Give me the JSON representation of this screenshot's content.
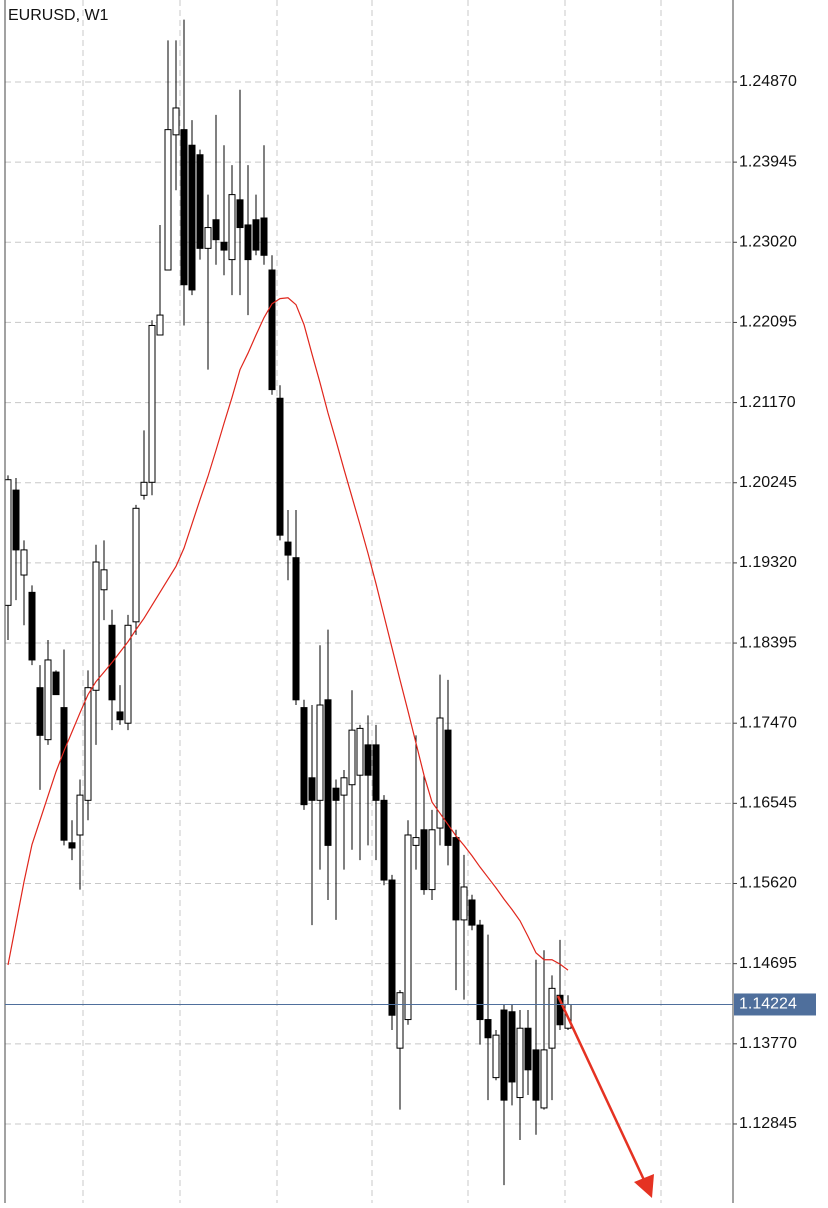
{
  "chart_data": {
    "type": "candlestick",
    "title": "EURUSD, W1",
    "ylim": [
      1.11933,
      1.25816
    ],
    "yticks": [
      {
        "value": 1.2487,
        "label": "1.24870"
      },
      {
        "value": 1.23945,
        "label": "1.23945"
      },
      {
        "value": 1.2302,
        "label": "1.23020"
      },
      {
        "value": 1.22095,
        "label": "1.22095"
      },
      {
        "value": 1.2117,
        "label": "1.21170"
      },
      {
        "value": 1.20245,
        "label": "1.20245"
      },
      {
        "value": 1.1932,
        "label": "1.19320"
      },
      {
        "value": 1.18395,
        "label": "1.18395"
      },
      {
        "value": 1.1747,
        "label": "1.17470"
      },
      {
        "value": 1.16545,
        "label": "1.16545"
      },
      {
        "value": 1.1562,
        "label": "1.15620"
      },
      {
        "value": 1.14695,
        "label": "1.14695"
      },
      {
        "value": 1.1377,
        "label": "1.13770"
      },
      {
        "value": 1.12845,
        "label": "1.12845"
      }
    ],
    "grid": true,
    "up_color": "#ffffff",
    "down_color": "#000000",
    "open": [
      1.1883,
      1.2016,
      1.1918,
      1.1898,
      1.1788,
      1.1728,
      1.1806,
      1.1765,
      1.1609,
      1.1618,
      1.1658,
      1.1785,
      1.1901,
      1.186,
      1.176,
      1.1747,
      1.1864,
      1.201,
      1.2025,
      1.2195,
      1.227,
      1.2426,
      1.2432,
      1.2414,
      1.2403,
      1.2295,
      1.2328,
      1.2302,
      1.2282,
      1.2351,
      1.2322,
      1.2328,
      1.233,
      1.227,
      1.2122,
      1.1956,
      1.1938,
      1.1765,
      1.1684,
      1.1658,
      1.1774,
      1.1672,
      1.1664,
      1.1676,
      1.1687,
      1.1722,
      1.1722,
      1.1658,
      1.1566,
      1.1372,
      1.1405,
      1.1606,
      1.1624,
      1.1555,
      1.1626,
      1.1739,
      1.1615,
      1.152,
      1.1543,
      1.1514,
      1.1405,
      1.1338,
      1.1416,
      1.1414,
      1.1315,
      1.1395,
      1.137,
      1.1303,
      1.1372,
      1.1433,
      1.1395
    ],
    "high": [
      1.2033,
      1.203,
      1.1958,
      1.1906,
      1.1814,
      1.1843,
      1.1808,
      1.1832,
      1.1635,
      1.1682,
      1.1808,
      1.1953,
      1.1958,
      1.1878,
      1.1791,
      1.1872,
      1.1999,
      1.2085,
      1.2212,
      1.2322,
      1.2535,
      1.2535,
      1.2559,
      1.2443,
      1.2409,
      1.2357,
      1.2449,
      1.2414,
      1.2391,
      1.2478,
      1.2391,
      1.2357,
      1.2414,
      1.2287,
      1.2137,
      1.1993,
      1.1993,
      1.1774,
      1.1768,
      1.1837,
      1.1855,
      1.1682,
      1.1693,
      1.1785,
      1.1745,
      1.1756,
      1.1745,
      1.1664,
      1.1572,
      1.1439,
      1.1635,
      1.1733,
      1.1687,
      1.1647,
      1.1803,
      1.1797,
      1.1624,
      1.1595,
      1.1549,
      1.152,
      1.1503,
      1.1393,
      1.1422,
      1.1422,
      1.1416,
      1.1416,
      1.1474,
      1.1485,
      1.1456,
      1.1497,
      1.1433
    ],
    "low": [
      1.1843,
      1.1889,
      1.186,
      1.1814,
      1.167,
      1.1722,
      1.178,
      1.1606,
      1.1589,
      1.1555,
      1.1635,
      1.1722,
      1.1866,
      1.1739,
      1.1745,
      1.1739,
      1.1849,
      1.2005,
      1.201,
      1.2195,
      1.227,
      1.2362,
      1.2206,
      1.2241,
      1.2282,
      1.2155,
      1.2276,
      1.2264,
      1.2241,
      1.2241,
      1.2218,
      1.2287,
      1.2276,
      1.2126,
      1.1958,
      1.1912,
      1.1768,
      1.1647,
      1.1514,
      1.1578,
      1.1543,
      1.152,
      1.1578,
      1.1601,
      1.1589,
      1.1606,
      1.1589,
      1.156,
      1.1393,
      1.1301,
      1.1399,
      1.1578,
      1.1549,
      1.1543,
      1.1606,
      1.1583,
      1.1439,
      1.1428,
      1.1508,
      1.1376,
      1.1312,
      1.1335,
      1.1214,
      1.1306,
      1.1266,
      1.1318,
      1.1272,
      1.1301,
      1.1312,
      1.1393,
      1.1393
    ],
    "close": [
      1.2028,
      1.1947,
      1.1947,
      1.182,
      1.1733,
      1.182,
      1.178,
      1.1612,
      1.1603,
      1.1664,
      1.1788,
      1.1933,
      1.1924,
      1.1774,
      1.1751,
      1.186,
      1.1995,
      1.2025,
      1.2206,
      1.2218,
      1.2432,
      1.2457,
      1.2253,
      1.2247,
      1.2295,
      1.2319,
      1.2305,
      1.2293,
      1.2357,
      1.2319,
      1.2282,
      1.2293,
      1.2287,
      1.2132,
      1.1964,
      1.1941,
      1.1774,
      1.1653,
      1.1658,
      1.1768,
      1.1606,
      1.1658,
      1.1684,
      1.1739,
      1.1741,
      1.1687,
      1.1658,
      1.1566,
      1.141,
      1.1436,
      1.1618,
      1.1615,
      1.1555,
      1.1624,
      1.1753,
      1.1606,
      1.152,
      1.1558,
      1.1514,
      1.1405,
      1.1384,
      1.1387,
      1.1312,
      1.1333,
      1.1395,
      1.1347,
      1.1312,
      1.137,
      1.1441,
      1.1399,
      1.14224
    ],
    "ma": {
      "color": "#e0261c",
      "values": [
        1.1468,
        1.1516,
        1.1564,
        1.1607,
        1.1635,
        1.1663,
        1.1691,
        1.1715,
        1.1737,
        1.1759,
        1.178,
        1.1795,
        1.1806,
        1.1817,
        1.1829,
        1.1841,
        1.1855,
        1.1868,
        1.1883,
        1.1898,
        1.1913,
        1.1928,
        1.1949,
        1.1977,
        1.2005,
        1.2032,
        1.2062,
        1.2093,
        1.2123,
        1.2155,
        1.2174,
        1.2195,
        1.2215,
        1.2231,
        1.2237,
        1.2238,
        1.223,
        1.2207,
        1.2173,
        1.214,
        1.2105,
        1.2073,
        1.204,
        1.2008,
        1.1976,
        1.1943,
        1.1908,
        1.1871,
        1.1834,
        1.1797,
        1.1761,
        1.1724,
        1.1687,
        1.1656,
        1.1643,
        1.163,
        1.1617,
        1.1606,
        1.1594,
        1.1581,
        1.1569,
        1.1557,
        1.1544,
        1.1532,
        1.1519,
        1.1501,
        1.1482,
        1.1474,
        1.1474,
        1.1469,
        1.1462
      ]
    },
    "current_price": 1.14224,
    "current_price_color": "#4f6f9c"
  }
}
